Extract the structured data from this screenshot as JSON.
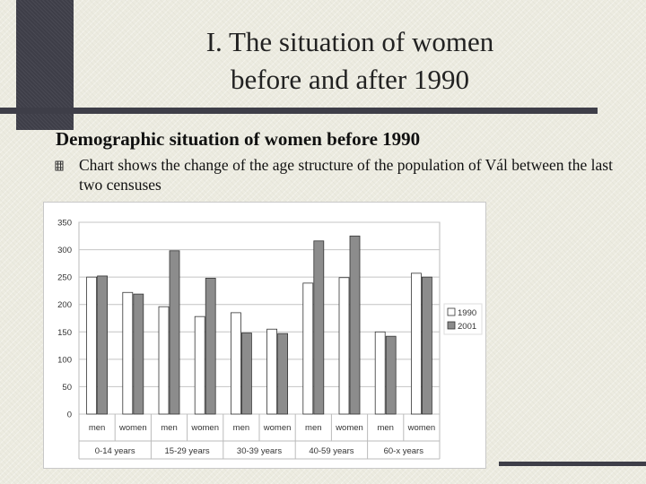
{
  "slide": {
    "title": "I. The situation of women\nbefore and after 1990",
    "heading": "Demographic situation of women before 1990",
    "bullet": "Chart shows the change of the age structure of the population of Vál between the last two censuses"
  },
  "colors": {
    "bar_1990": "#ffffff",
    "bar_2001": "#8c8c8c",
    "bar_stroke": "#333333",
    "decoration": "#3e3e48"
  },
  "chart_data": {
    "type": "bar",
    "categories": [
      "men",
      "women",
      "men",
      "women",
      "men",
      "women",
      "men",
      "women",
      "men",
      "women"
    ],
    "groups": [
      {
        "label": "0-14 years",
        "categories": [
          "men",
          "women"
        ]
      },
      {
        "label": "15-29 years",
        "categories": [
          "men",
          "women"
        ]
      },
      {
        "label": "30-39 years",
        "categories": [
          "men",
          "women"
        ]
      },
      {
        "label": "40-59 years",
        "categories": [
          "men",
          "women"
        ]
      },
      {
        "label": "60-x years",
        "categories": [
          "men",
          "women"
        ]
      }
    ],
    "series": [
      {
        "name": "1990",
        "values": [
          250,
          222,
          196,
          178,
          185,
          155,
          239,
          249,
          150,
          257
        ]
      },
      {
        "name": "2001",
        "values": [
          252,
          219,
          298,
          248,
          148,
          147,
          316,
          325,
          142,
          250
        ]
      }
    ],
    "ylim": [
      0,
      350
    ],
    "yticks": [
      0,
      50,
      100,
      150,
      200,
      250,
      300,
      350
    ],
    "legend_position": "right",
    "grid": true
  }
}
